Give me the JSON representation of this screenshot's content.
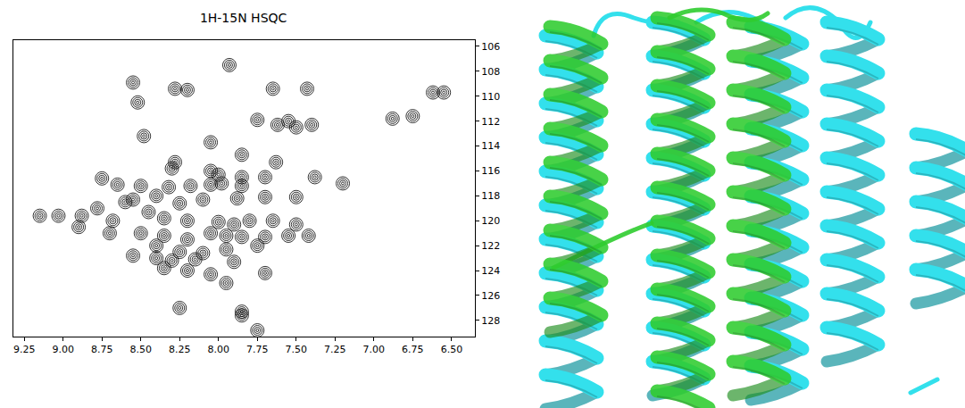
{
  "chart_data": {
    "type": "scatter",
    "title": "1H-15N HSQC",
    "x": [
      8.55,
      8.28,
      8.2,
      7.93,
      8.52,
      7.65,
      7.43,
      7.75,
      7.62,
      7.55,
      7.5,
      7.4,
      6.88,
      6.75,
      6.62,
      6.55,
      8.48,
      8.05,
      7.85,
      7.63,
      8.28,
      8.3,
      8.05,
      8.0,
      7.85,
      7.7,
      7.38,
      8.75,
      8.65,
      8.5,
      8.32,
      8.18,
      8.05,
      7.98,
      7.85,
      7.2,
      8.6,
      8.55,
      8.4,
      8.25,
      8.1,
      7.88,
      7.7,
      7.5,
      9.15,
      9.03,
      8.88,
      8.78,
      8.68,
      8.45,
      8.35,
      8.2,
      8.0,
      7.9,
      7.8,
      7.65,
      7.5,
      8.9,
      8.7,
      8.5,
      8.35,
      8.2,
      8.05,
      7.95,
      7.85,
      7.7,
      7.55,
      7.42,
      8.4,
      8.25,
      8.1,
      7.95,
      7.75,
      8.55,
      8.4,
      8.3,
      8.15,
      7.9,
      8.35,
      8.2,
      8.05,
      7.7,
      7.95,
      8.25,
      7.85,
      7.85,
      7.75
    ],
    "y": [
      108.9,
      109.4,
      109.5,
      107.5,
      110.5,
      109.4,
      109.4,
      111.9,
      112.3,
      112.0,
      112.5,
      112.3,
      111.8,
      111.6,
      109.7,
      109.7,
      113.2,
      113.7,
      114.7,
      115.3,
      115.3,
      115.8,
      116.0,
      116.3,
      116.5,
      116.5,
      116.5,
      116.6,
      117.1,
      117.2,
      117.3,
      117.2,
      117.1,
      117.0,
      117.2,
      117.0,
      118.5,
      118.3,
      118.0,
      118.6,
      118.3,
      118.2,
      118.1,
      118.1,
      119.6,
      119.6,
      119.6,
      119.0,
      120.0,
      119.3,
      119.8,
      120.0,
      120.1,
      120.3,
      120.0,
      120.0,
      120.3,
      120.5,
      121.0,
      121.0,
      121.2,
      121.5,
      121.0,
      121.2,
      121.3,
      121.3,
      121.2,
      121.2,
      122.0,
      122.5,
      122.6,
      122.3,
      122.0,
      122.8,
      123.0,
      123.2,
      123.1,
      123.3,
      123.8,
      124.0,
      124.3,
      124.2,
      125.0,
      127.0,
      127.3,
      127.6,
      128.8
    ],
    "color": "#000000",
    "marker": "contour",
    "grid": false,
    "xlim": [
      9.32,
      6.35
    ],
    "ylim": [
      129.3,
      105.5
    ],
    "xticks": [
      9.25,
      {
        "value": 9,
        "label": "9.00"
      },
      8.75,
      {
        "value": 8.5,
        "label": "8.50"
      },
      8.25,
      {
        "value": 8,
        "label": "8.00"
      },
      7.75,
      {
        "value": 7.5,
        "label": "7.50"
      },
      7.25,
      {
        "value": 7,
        "label": "7.00"
      },
      6.75,
      {
        "value": 6.5,
        "label": "6.50"
      }
    ],
    "yticks": [
      106,
      108,
      110,
      112,
      114,
      116,
      118,
      120,
      122,
      124,
      126,
      128
    ]
  },
  "structure": {
    "colors": [
      "#33e0ec",
      "#2fcc2f"
    ]
  }
}
